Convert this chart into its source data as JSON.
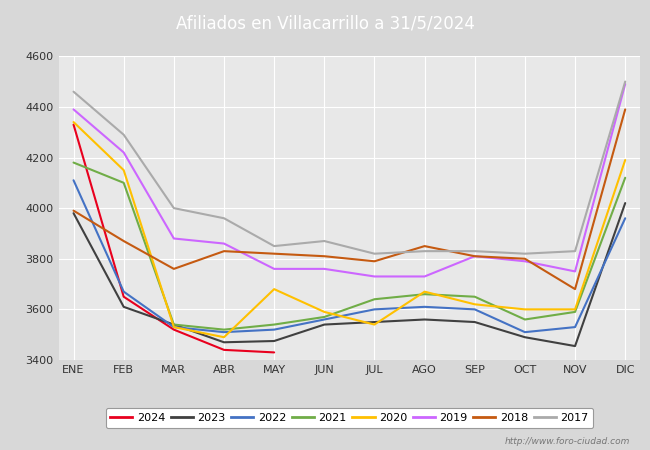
{
  "title": "Afiliados en Villacarrillo a 31/5/2024",
  "title_bg": "#4d86c8",
  "xlabel": "",
  "ylabel": "",
  "ylim": [
    3400,
    4600
  ],
  "yticks": [
    3400,
    3600,
    3800,
    4000,
    4200,
    4400,
    4600
  ],
  "months": [
    "ENE",
    "FEB",
    "MAR",
    "ABR",
    "MAY",
    "JUN",
    "JUL",
    "AGO",
    "SEP",
    "OCT",
    "NOV",
    "DIC"
  ],
  "series": {
    "2024": {
      "color": "#e8001e",
      "data": [
        4330,
        3650,
        3520,
        3440,
        3430,
        null,
        null,
        null,
        null,
        null,
        null,
        null
      ]
    },
    "2023": {
      "color": "#404040",
      "data": [
        3980,
        3610,
        3540,
        3470,
        3475,
        3540,
        3550,
        3560,
        3550,
        3490,
        3455,
        4020
      ]
    },
    "2022": {
      "color": "#4472c4",
      "data": [
        4110,
        3670,
        3530,
        3510,
        3520,
        3560,
        3600,
        3610,
        3600,
        3510,
        3530,
        3960
      ]
    },
    "2021": {
      "color": "#70ad47",
      "data": [
        4180,
        4100,
        3540,
        3520,
        3540,
        3570,
        3640,
        3660,
        3650,
        3560,
        3590,
        4120
      ]
    },
    "2020": {
      "color": "#ffc000",
      "data": [
        4340,
        4150,
        3530,
        3490,
        3680,
        3590,
        3540,
        3670,
        3620,
        3600,
        3600,
        4190
      ]
    },
    "2019": {
      "color": "#cc66ff",
      "data": [
        4390,
        4220,
        3880,
        3860,
        3760,
        3760,
        3730,
        3730,
        3810,
        3790,
        3750,
        4490
      ]
    },
    "2018": {
      "color": "#c55a11",
      "data": [
        3990,
        3870,
        3760,
        3830,
        3820,
        3810,
        3790,
        3850,
        3810,
        3800,
        3680,
        4390
      ]
    },
    "2017": {
      "color": "#aaaaaa",
      "data": [
        4460,
        4290,
        4000,
        3960,
        3850,
        3870,
        3820,
        3830,
        3830,
        3820,
        3830,
        4500
      ]
    }
  },
  "legend_order": [
    "2024",
    "2023",
    "2022",
    "2021",
    "2020",
    "2019",
    "2018",
    "2017"
  ],
  "fig_bg": "#d8d8d8",
  "plot_bg": "#e8e8e8",
  "grid_color": "#ffffff",
  "url_text": "http://www.foro-ciudad.com"
}
